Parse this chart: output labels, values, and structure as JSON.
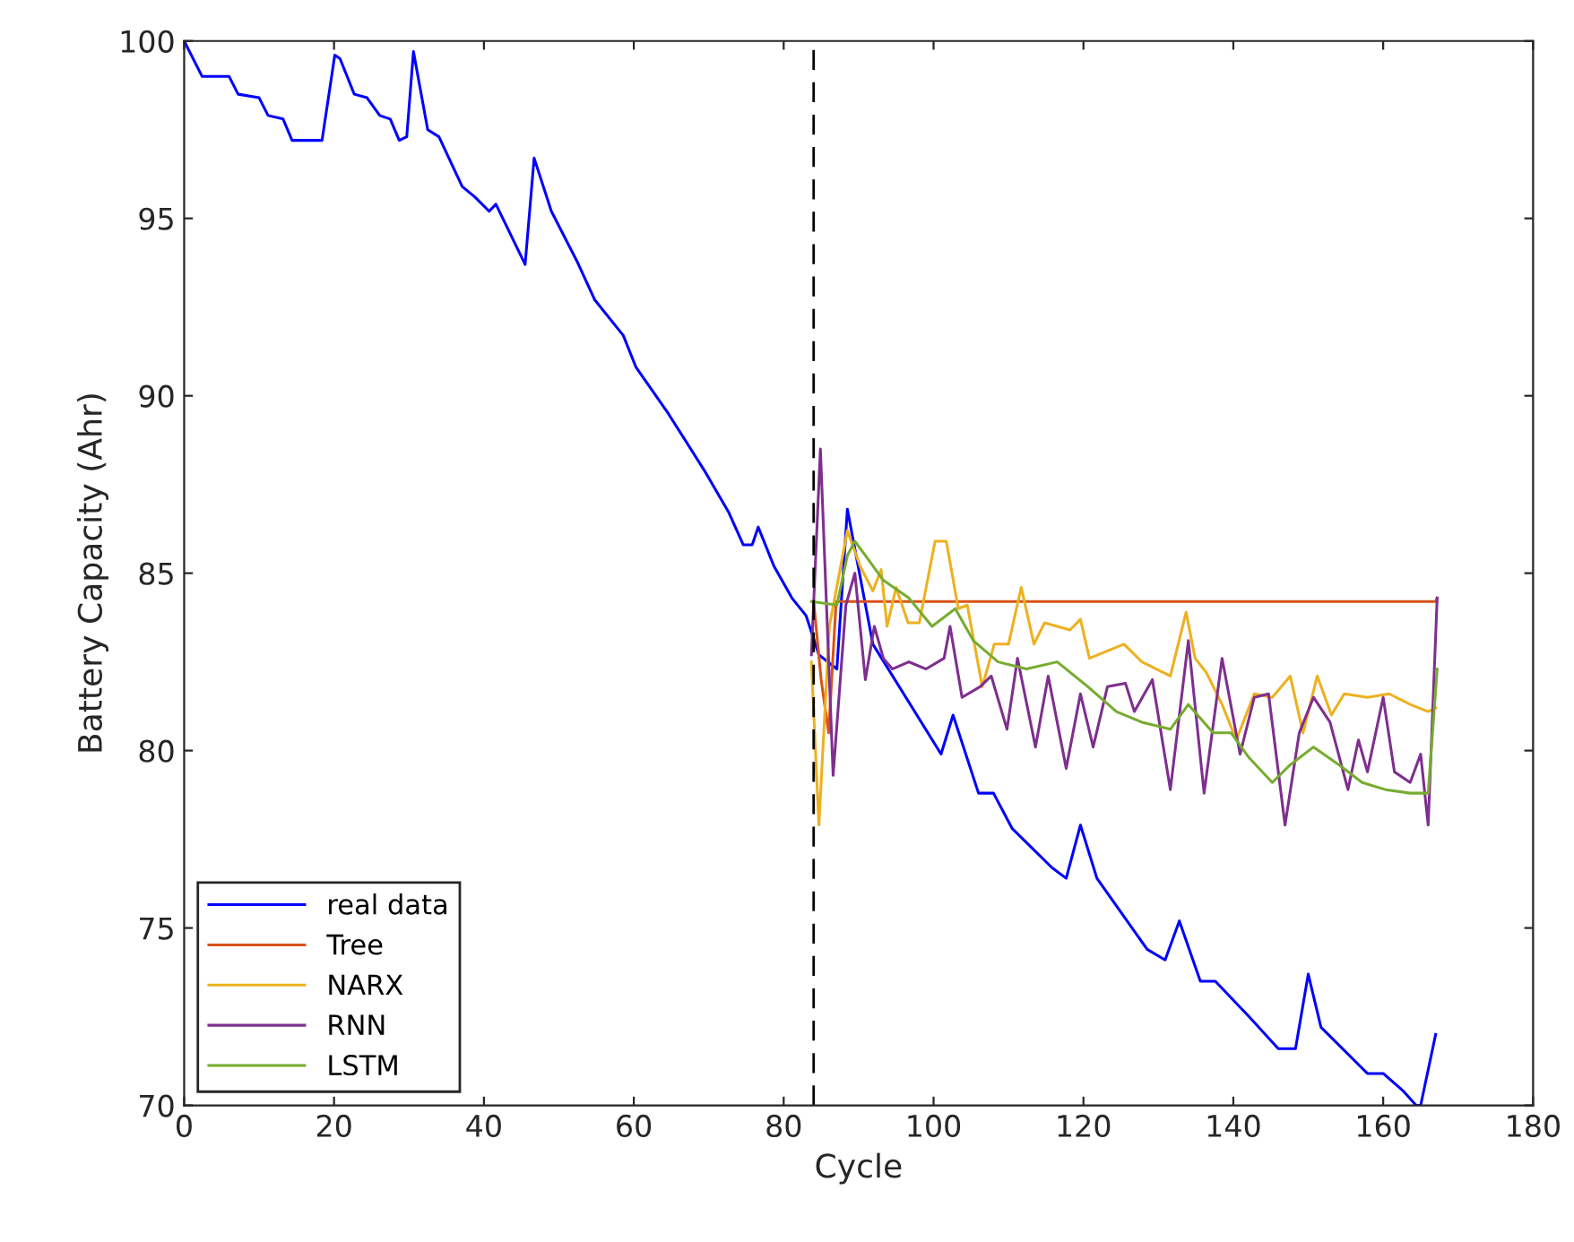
{
  "chart_data": {
    "type": "line",
    "xlabel": "Cycle",
    "ylabel": "Battery Capacity (Ahr)",
    "xlim": [
      0,
      180
    ],
    "ylim": [
      70,
      100
    ],
    "xticks": [
      0,
      20,
      40,
      60,
      80,
      100,
      120,
      140,
      160,
      180
    ],
    "yticks": [
      70,
      75,
      80,
      85,
      90,
      95,
      100
    ],
    "grid": false,
    "legend": "bottom left",
    "line_style": "solid",
    "marker": "none",
    "ref_lines": [
      {
        "axis": "x",
        "value": 84,
        "color": "#000000",
        "line_style": "dashed"
      }
    ],
    "series": [
      {
        "name": "real data",
        "color": "#0000ff",
        "x": [
          0,
          2.4,
          6.0,
          7.2,
          10.0,
          11.2,
          13.2,
          14.4,
          18.4,
          20.1,
          20.8,
          22.7,
          24.4,
          26.1,
          27.5,
          28.7,
          29.7,
          30.6,
          32.5,
          34,
          37.1,
          38.8,
          40.7,
          41.6,
          45.5,
          46.7,
          49,
          52.4,
          54.8,
          58.6,
          60.3,
          64.6,
          69.4,
          72.7,
          74.6,
          75.8,
          76.6,
          78.7,
          81.1,
          83,
          84.7,
          87.1,
          88.5,
          91.9,
          101,
          102.6,
          106,
          108,
          110.5,
          115.8,
          117.7,
          119.6,
          121.8,
          128.5,
          130.9,
          132.8,
          135.6,
          137.6,
          142.1,
          146,
          148.3,
          150,
          151.7,
          157.9,
          160,
          162.7,
          164.4,
          165,
          167
        ],
        "values": [
          100,
          99.0,
          99.0,
          98.5,
          98.4,
          97.9,
          97.8,
          97.2,
          97.2,
          99.6,
          99.5,
          98.5,
          98.4,
          97.9,
          97.8,
          97.2,
          97.3,
          99.7,
          97.5,
          97.3,
          95.9,
          95.6,
          95.2,
          95.4,
          93.7,
          96.7,
          95.2,
          93.8,
          92.7,
          91.7,
          90.8,
          89.5,
          87.9,
          86.7,
          85.8,
          85.8,
          86.3,
          85.2,
          84.3,
          83.8,
          82.7,
          82.3,
          86.8,
          83.0,
          79.9,
          81.0,
          78.8,
          78.8,
          77.8,
          76.7,
          76.4,
          77.9,
          76.4,
          74.4,
          74.1,
          75.2,
          73.5,
          73.5,
          72.5,
          71.6,
          71.6,
          73.7,
          72.2,
          70.9,
          70.9,
          70.4,
          70.0,
          70.0,
          72.0
        ]
      },
      {
        "name": "Tree",
        "color": "#d95319",
        "x": [
          84,
          85,
          86,
          87,
          167,
          167.2
        ],
        "values": [
          84.2,
          82.0,
          80.5,
          84.2,
          84.2,
          84.3
        ]
      },
      {
        "name": "NARX",
        "color": "#edb120",
        "x": [
          83.7,
          84.7,
          86.1,
          88.5,
          90.2,
          91.9,
          93,
          93.8,
          95,
          96.6,
          98.1,
          100.2,
          101.7,
          103.3,
          104.5,
          106.5,
          108.1,
          110,
          111.7,
          113.4,
          114.8,
          118.2,
          119.6,
          120.8,
          125.4,
          127.8,
          131.6,
          133.7,
          134.9,
          136.4,
          138.5,
          140.4,
          142.8,
          145.2,
          147.6,
          149.3,
          151.2,
          153.1,
          154.8,
          157.9,
          160.8,
          163.6,
          166,
          167
        ],
        "values": [
          82.5,
          77.9,
          83.5,
          86.2,
          85.2,
          84.5,
          85.1,
          83.5,
          84.6,
          83.6,
          83.6,
          85.9,
          85.9,
          84.0,
          84.1,
          81.8,
          83.0,
          83.0,
          84.6,
          83.0,
          83.6,
          83.4,
          83.7,
          82.6,
          83.0,
          82.5,
          82.1,
          83.9,
          82.6,
          82.2,
          81.3,
          80.3,
          81.6,
          81.5,
          82.1,
          80.5,
          82.1,
          81.0,
          81.6,
          81.5,
          81.6,
          81.3,
          81.1,
          81.2
        ]
      },
      {
        "name": "RNN",
        "color": "#7e2f8e",
        "x": [
          83.7,
          84.9,
          86.6,
          88.3,
          89.5,
          90.9,
          92.1,
          93.3,
          94.5,
          96.7,
          99,
          101.4,
          102.2,
          103.8,
          106.2,
          107.7,
          109.8,
          111.2,
          113.6,
          115.3,
          117.7,
          119.6,
          121.3,
          123.2,
          125.6,
          126.8,
          129.2,
          131.6,
          134,
          136.1,
          138.5,
          140.9,
          142.8,
          144.7,
          146.9,
          148.8,
          150.7,
          152.9,
          155.3,
          156.7,
          157.9,
          160,
          161.5,
          163.6,
          165,
          166,
          167.2
        ],
        "values": [
          82.7,
          88.5,
          79.3,
          84.1,
          85.0,
          82.0,
          83.5,
          82.6,
          82.3,
          82.5,
          82.3,
          82.6,
          83.5,
          81.5,
          81.8,
          82.1,
          80.6,
          82.6,
          80.1,
          82.1,
          79.5,
          81.6,
          80.1,
          81.8,
          81.9,
          81.1,
          82.0,
          78.9,
          83.1,
          78.8,
          82.6,
          79.9,
          81.5,
          81.6,
          77.9,
          80.5,
          81.5,
          80.8,
          78.9,
          80.3,
          79.4,
          81.5,
          79.4,
          79.1,
          79.9,
          77.9,
          84.3
        ]
      },
      {
        "name": "LSTM",
        "color": "#77ac30",
        "x": [
          83.7,
          87.1,
          88.5,
          89.5,
          90.9,
          93.3,
          96.7,
          99.8,
          102.9,
          105.3,
          108.6,
          112.4,
          116.5,
          120.6,
          124.4,
          127.8,
          131.6,
          134,
          137.3,
          139.7,
          142.1,
          145.2,
          147.6,
          150.7,
          154.1,
          157.2,
          160.3,
          163.6,
          166,
          167.2
        ],
        "values": [
          84.2,
          84.1,
          85.5,
          85.9,
          85.5,
          84.8,
          84.3,
          83.5,
          84.0,
          83.1,
          82.5,
          82.3,
          82.5,
          81.8,
          81.1,
          80.8,
          80.6,
          81.3,
          80.5,
          80.5,
          79.8,
          79.1,
          79.6,
          80.1,
          79.6,
          79.1,
          78.9,
          78.8,
          78.8,
          82.3
        ]
      }
    ]
  }
}
